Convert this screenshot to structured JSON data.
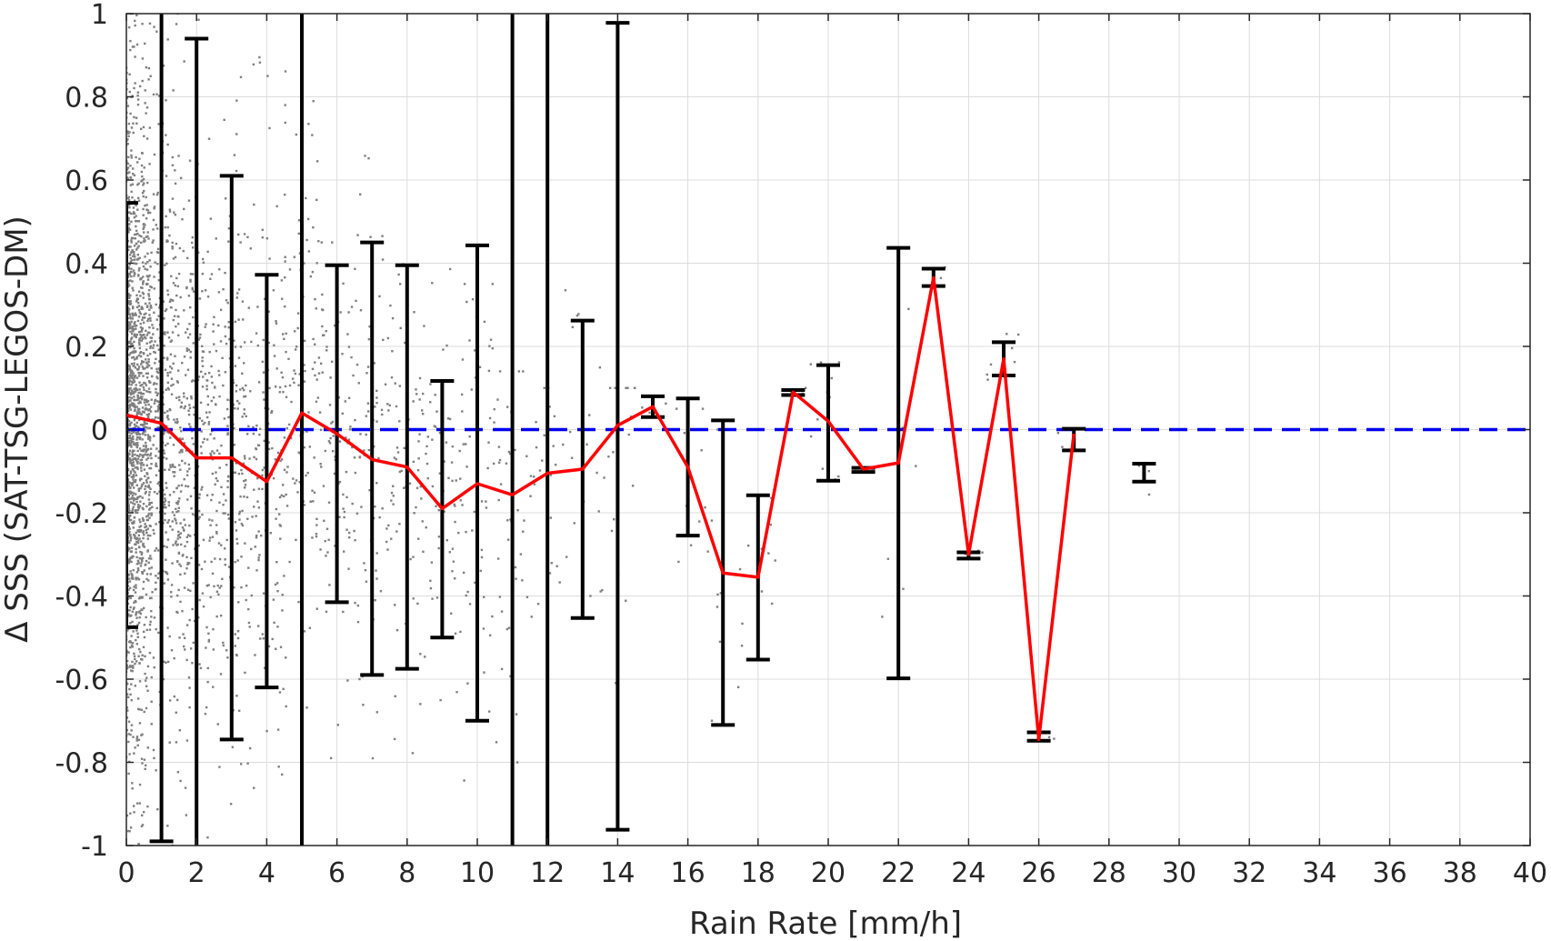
{
  "chart_data": {
    "type": "scatter",
    "title": "",
    "xlabel": "Rain Rate [mm/h]",
    "ylabel": "Δ SSS (SAT-TSG-LEGOS-DM)",
    "xlim": [
      0,
      40
    ],
    "ylim": [
      -1,
      1
    ],
    "xticks": [
      0,
      2,
      4,
      6,
      8,
      10,
      12,
      14,
      16,
      18,
      20,
      22,
      24,
      26,
      28,
      30,
      32,
      34,
      36,
      38,
      40
    ],
    "yticks": [
      -1,
      -0.8,
      -0.6,
      -0.4,
      -0.2,
      0,
      0.2,
      0.4,
      0.6,
      0.8,
      1
    ],
    "ytick_labels": [
      "-1",
      "-0.8",
      "-0.6",
      "-0.4",
      "-0.2",
      "0",
      "0.2",
      "0.4",
      "0.6",
      "0.8",
      "1"
    ],
    "grid": true,
    "colors": {
      "scatter": "#808080",
      "error_bars": "#000000",
      "mean_line": "#ff0000",
      "zero_line": "#0000ee",
      "grid": "#dcdcdc"
    },
    "zero_line": {
      "y": 0,
      "style": "dashed"
    },
    "series": [
      {
        "kind": "mean-line",
        "points": [
          [
            0,
            0.035
          ],
          [
            1,
            0.015
          ],
          [
            2,
            -0.068
          ],
          [
            3,
            -0.068
          ],
          [
            4,
            -0.125
          ],
          [
            5,
            0.04
          ],
          [
            6,
            -0.01
          ],
          [
            7,
            -0.072
          ],
          [
            8,
            -0.09
          ],
          [
            9,
            -0.19
          ],
          [
            10,
            -0.13
          ],
          [
            11,
            -0.157
          ],
          [
            12,
            -0.105
          ],
          [
            13,
            -0.095
          ],
          [
            14,
            0.01
          ],
          [
            15,
            0.055
          ],
          [
            16,
            -0.09
          ],
          [
            17,
            -0.345
          ],
          [
            18,
            -0.355
          ],
          [
            19,
            0.09
          ],
          [
            20,
            0.02
          ],
          [
            21,
            -0.095
          ],
          [
            22,
            -0.08
          ],
          [
            23,
            0.365
          ],
          [
            24,
            -0.3
          ],
          [
            25,
            0.17
          ],
          [
            26,
            -0.745
          ],
          [
            27,
            -0.01
          ]
        ]
      },
      {
        "kind": "error-bars",
        "bars": [
          {
            "x": 0,
            "low": -0.475,
            "high": 0.545
          },
          {
            "x": 1,
            "low": -0.99,
            "high": 1.02
          },
          {
            "x": 2,
            "low": -1.05,
            "high": 0.94
          },
          {
            "x": 3,
            "low": -0.745,
            "high": 0.61
          },
          {
            "x": 4,
            "low": -0.62,
            "high": 0.372
          },
          {
            "x": 5,
            "low": -1.05,
            "high": 1.05
          },
          {
            "x": 6,
            "low": -0.415,
            "high": 0.395
          },
          {
            "x": 7,
            "low": -0.59,
            "high": 0.45
          },
          {
            "x": 8,
            "low": -0.575,
            "high": 0.395
          },
          {
            "x": 9,
            "low": -0.5,
            "high": 0.117
          },
          {
            "x": 10,
            "low": -0.7,
            "high": 0.443
          },
          {
            "x": 11,
            "low": -1.05,
            "high": 1.05
          },
          {
            "x": 12,
            "low": -1.05,
            "high": 1.05
          },
          {
            "x": 13,
            "low": -0.453,
            "high": 0.262
          },
          {
            "x": 14,
            "low": -0.962,
            "high": 0.978
          },
          {
            "x": 15,
            "low": 0.03,
            "high": 0.08
          },
          {
            "x": 16,
            "low": -0.255,
            "high": 0.075
          },
          {
            "x": 17,
            "low": -0.71,
            "high": 0.022
          },
          {
            "x": 18,
            "low": -0.553,
            "high": -0.158
          },
          {
            "x": 19,
            "low": 0.083,
            "high": 0.095
          },
          {
            "x": 20,
            "low": -0.123,
            "high": 0.155
          },
          {
            "x": 21,
            "low": -0.102,
            "high": -0.092
          },
          {
            "x": 22,
            "low": -0.598,
            "high": 0.437
          },
          {
            "x": 23,
            "low": 0.345,
            "high": 0.387
          },
          {
            "x": 24,
            "low": -0.31,
            "high": -0.295
          },
          {
            "x": 25,
            "low": 0.13,
            "high": 0.21
          },
          {
            "x": 26,
            "low": -0.748,
            "high": -0.728
          },
          {
            "x": 27,
            "low": -0.05,
            "high": 0.002
          },
          {
            "x": 29,
            "low": -0.125,
            "high": -0.082
          }
        ]
      },
      {
        "kind": "scatter-bins",
        "bins": [
          {
            "x0": 0.0,
            "x1": 0.7,
            "n": 1600,
            "mean": 0.04,
            "sd": 0.32,
            "lo": -1.0,
            "hi": 1.0
          },
          {
            "x0": 0.7,
            "x1": 1.5,
            "n": 420,
            "mean": 0.01,
            "sd": 0.33,
            "lo": -1.0,
            "hi": 1.0
          },
          {
            "x0": 1.5,
            "x1": 2.5,
            "n": 300,
            "mean": -0.07,
            "sd": 0.3,
            "lo": -1.0,
            "hi": 1.0
          },
          {
            "x0": 2.5,
            "x1": 3.5,
            "n": 210,
            "mean": -0.07,
            "sd": 0.3,
            "lo": -0.9,
            "hi": 0.95
          },
          {
            "x0": 3.5,
            "x1": 4.5,
            "n": 150,
            "mean": -0.12,
            "sd": 0.28,
            "lo": -0.95,
            "hi": 0.9
          },
          {
            "x0": 4.5,
            "x1": 5.5,
            "n": 120,
            "mean": 0.03,
            "sd": 0.3,
            "lo": -0.9,
            "hi": 0.9
          },
          {
            "x0": 5.5,
            "x1": 6.5,
            "n": 90,
            "mean": -0.02,
            "sd": 0.25,
            "lo": -0.8,
            "hi": 0.45
          },
          {
            "x0": 6.5,
            "x1": 7.5,
            "n": 80,
            "mean": -0.08,
            "sd": 0.28,
            "lo": -0.9,
            "hi": 0.7
          },
          {
            "x0": 7.5,
            "x1": 8.5,
            "n": 70,
            "mean": -0.09,
            "sd": 0.27,
            "lo": -0.95,
            "hi": 0.4
          },
          {
            "x0": 8.5,
            "x1": 9.5,
            "n": 60,
            "mean": -0.18,
            "sd": 0.22,
            "lo": -0.8,
            "hi": 0.52
          },
          {
            "x0": 9.5,
            "x1": 10.5,
            "n": 60,
            "mean": -0.12,
            "sd": 0.28,
            "lo": -0.95,
            "hi": 0.35
          },
          {
            "x0": 10.5,
            "x1": 11.5,
            "n": 40,
            "mean": -0.15,
            "sd": 0.26,
            "lo": -0.8,
            "hi": 0.14
          },
          {
            "x0": 11.5,
            "x1": 12.5,
            "n": 25,
            "mean": -0.1,
            "sd": 0.2,
            "lo": -0.45,
            "hi": 0.1
          },
          {
            "x0": 12.5,
            "x1": 13.5,
            "n": 15,
            "mean": -0.1,
            "sd": 0.2,
            "lo": -0.4,
            "hi": 0.52
          },
          {
            "x0": 13.5,
            "x1": 14.5,
            "n": 20,
            "mean": 0.0,
            "sd": 0.35,
            "lo": -0.95,
            "hi": 0.1
          },
          {
            "x0": 14.5,
            "x1": 15.5,
            "n": 6,
            "mean": 0.05,
            "sd": 0.02,
            "lo": 0.02,
            "hi": 0.09
          },
          {
            "x0": 15.5,
            "x1": 16.5,
            "n": 10,
            "mean": -0.09,
            "sd": 0.15,
            "lo": -0.48,
            "hi": 0.05
          },
          {
            "x0": 16.5,
            "x1": 17.5,
            "n": 10,
            "mean": -0.34,
            "sd": 0.25,
            "lo": -0.7,
            "hi": 0.0
          },
          {
            "x0": 17.5,
            "x1": 18.5,
            "n": 10,
            "mean": -0.36,
            "sd": 0.12,
            "lo": -0.55,
            "hi": -0.15
          },
          {
            "x0": 18.5,
            "x1": 19.5,
            "n": 4,
            "mean": 0.09,
            "sd": 0.01,
            "lo": 0.08,
            "hi": 0.1
          },
          {
            "x0": 19.5,
            "x1": 20.5,
            "n": 12,
            "mean": 0.02,
            "sd": 0.12,
            "lo": -0.12,
            "hi": 0.29
          },
          {
            "x0": 20.5,
            "x1": 21.5,
            "n": 3,
            "mean": -0.095,
            "sd": 0.005,
            "lo": -0.1,
            "hi": -0.09
          },
          {
            "x0": 21.5,
            "x1": 22.5,
            "n": 6,
            "mean": -0.08,
            "sd": 0.3,
            "lo": -0.45,
            "hi": 0.29
          },
          {
            "x0": 22.5,
            "x1": 23.5,
            "n": 4,
            "mean": 0.37,
            "sd": 0.02,
            "lo": 0.34,
            "hi": 0.39
          },
          {
            "x0": 23.5,
            "x1": 24.5,
            "n": 4,
            "mean": -0.3,
            "sd": 0.01,
            "lo": -0.32,
            "hi": -0.28
          },
          {
            "x0": 24.5,
            "x1": 25.5,
            "n": 8,
            "mean": 0.17,
            "sd": 0.04,
            "lo": 0.12,
            "hi": 0.23
          },
          {
            "x0": 25.5,
            "x1": 26.5,
            "n": 3,
            "mean": -0.74,
            "sd": 0.01,
            "lo": -0.76,
            "hi": -0.72
          },
          {
            "x0": 26.5,
            "x1": 27.5,
            "n": 4,
            "mean": -0.01,
            "sd": 0.03,
            "lo": -0.05,
            "hi": 0.02
          },
          {
            "x0": 28.5,
            "x1": 29.5,
            "n": 4,
            "mean": -0.12,
            "sd": 0.03,
            "lo": -0.16,
            "hi": -0.08
          }
        ]
      }
    ]
  }
}
